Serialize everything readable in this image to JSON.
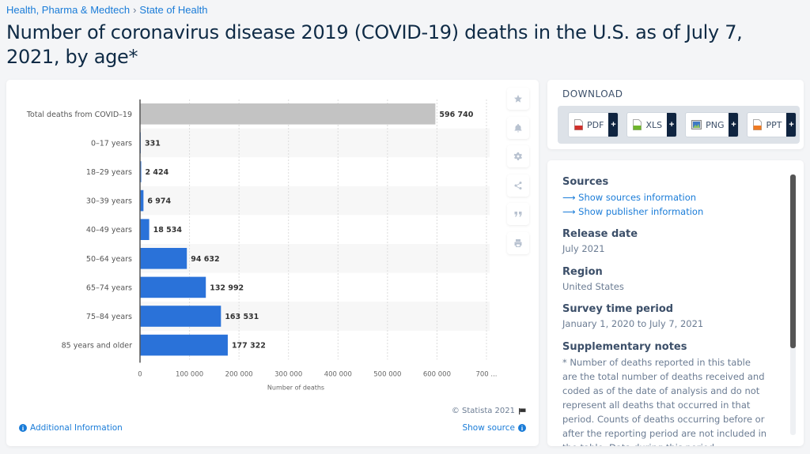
{
  "breadcrumb": [
    "Health, Pharma & Medtech",
    "State of Health"
  ],
  "breadcrumb_sep": "›",
  "title": "Number of coronavirus disease 2019 (COVID-19) deaths in the U.S. as of July 7, 2021, by age*",
  "tools": [
    {
      "name": "star-icon",
      "label": "Favorite"
    },
    {
      "name": "bell-icon",
      "label": "Notifications"
    },
    {
      "name": "gear-icon",
      "label": "Settings"
    },
    {
      "name": "share-icon",
      "label": "Share"
    },
    {
      "name": "quote-icon",
      "label": "Cite"
    },
    {
      "name": "print-icon",
      "label": "Print"
    }
  ],
  "chart_footer": {
    "copyright": "© Statista 2021",
    "additional_info": "Additional Information",
    "show_source": "Show source"
  },
  "download": {
    "title": "DOWNLOAD",
    "buttons": [
      {
        "label": "PDF",
        "icon": "pdf-file-icon",
        "color": "#d0302b"
      },
      {
        "label": "XLS",
        "icon": "xls-file-icon",
        "color": "#6fb52c"
      },
      {
        "label": "PNG",
        "icon": "png-image-icon",
        "color": "#3f79c4"
      },
      {
        "label": "PPT",
        "icon": "ppt-file-icon",
        "color": "#ef7a22"
      }
    ],
    "plus": "+"
  },
  "info": {
    "sources_heading": "Sources",
    "sources_links": [
      "Show sources information",
      "Show publisher information"
    ],
    "release_heading": "Release date",
    "release_value": "July 2021",
    "region_heading": "Region",
    "region_value": "United States",
    "survey_heading": "Survey time period",
    "survey_value": "January 1, 2020 to July 7, 2021",
    "notes_heading": "Supplementary notes",
    "notes_value": "* Number of deaths reported in this table are the total number of deaths received and coded as of the date of analysis and do not represent all deaths that occurred in that period. Counts of deaths occurring before or after the reporting period are not included in the table. Data during this period"
  },
  "colors": {
    "bar_primary": "#2a72d9",
    "bar_total": "#c3c3c3",
    "link": "#1a7cd8"
  },
  "chart_data": {
    "type": "bar",
    "orientation": "horizontal",
    "title": "Number of coronavirus disease 2019 (COVID-19) deaths in the U.S. as of July 7, 2021, by age*",
    "categories": [
      "Total deaths from COVID-19",
      "0-17 years",
      "18-29 years",
      "30-39 years",
      "40-49 years",
      "50-64 years",
      "65-74 years",
      "75-84 years",
      "85 years and older"
    ],
    "values": [
      596740,
      331,
      2424,
      6974,
      18534,
      94632,
      132992,
      163531,
      177322
    ],
    "value_labels": [
      "596 740",
      "331",
      "2 424",
      "6 974",
      "18 534",
      "94 632",
      "132 992",
      "163 531",
      "177 322"
    ],
    "highlight_category": "Total deaths from COVID-19",
    "xlabel": "Number of deaths",
    "ylabel": "",
    "xlim": [
      0,
      700000
    ],
    "xticks": [
      0,
      100000,
      200000,
      300000,
      400000,
      500000,
      600000,
      700000
    ],
    "xtick_labels": [
      "0",
      "100 000",
      "200 000",
      "300 000",
      "400 000",
      "500 000",
      "600 000",
      "700 ..."
    ],
    "grid": true
  }
}
